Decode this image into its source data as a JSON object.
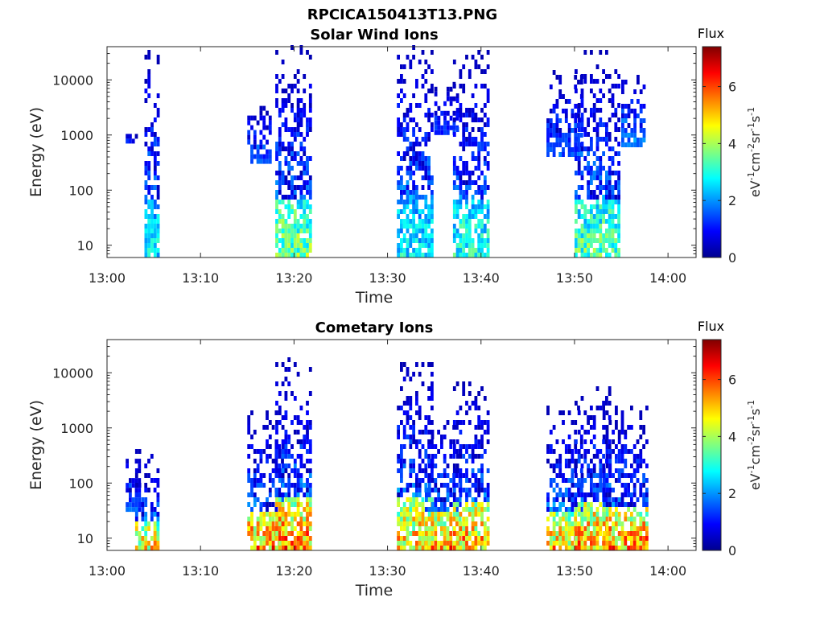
{
  "figure_title": "RPCICA150413T13.PNG",
  "chart_data": [
    {
      "type": "heatmap",
      "title": "Solar Wind Ions",
      "xlabel": "Time",
      "ylabel": "Energy (eV)",
      "x_ticks": [
        "13:00",
        "13:10",
        "13:20",
        "13:30",
        "13:40",
        "13:50",
        "14:00"
      ],
      "xlim": [
        "13:00",
        "14:03"
      ],
      "y_scale": "log",
      "y_ticks": [
        "10",
        "100",
        "1000",
        "10000"
      ],
      "ylim": [
        6,
        40000
      ],
      "colorbar": {
        "label": "Flux",
        "unit": "eV-1cm-2sr-1s-1",
        "ticks": [
          "0",
          "2",
          "4",
          "6"
        ],
        "range": [
          0,
          7.4
        ],
        "colormap": "jet"
      },
      "bursts": [
        {
          "start": "13:04",
          "end": "13:05",
          "e_low": 6,
          "e_high": 33000,
          "peak_flux": 3.5
        },
        {
          "start": "13:02",
          "end": "13:03",
          "e_low": 700,
          "e_high": 1100,
          "peak_flux": 3.0
        },
        {
          "start": "13:15",
          "end": "13:17",
          "e_low": 300,
          "e_high": 4000,
          "peak_flux": 2.0
        },
        {
          "start": "13:18",
          "end": "13:21",
          "e_low": 6,
          "e_high": 35000,
          "peak_flux": 4.8
        },
        {
          "start": "13:31",
          "end": "13:34",
          "e_low": 6,
          "e_high": 38000,
          "peak_flux": 3.5
        },
        {
          "start": "13:35",
          "end": "13:37",
          "e_low": 1000,
          "e_high": 8000,
          "peak_flux": 1.8
        },
        {
          "start": "13:37",
          "end": "13:40",
          "e_low": 6,
          "e_high": 30000,
          "peak_flux": 4.0
        },
        {
          "start": "13:47",
          "end": "13:50",
          "e_low": 400,
          "e_high": 14000,
          "peak_flux": 2.0
        },
        {
          "start": "13:50",
          "end": "13:54",
          "e_low": 6,
          "e_high": 33000,
          "peak_flux": 4.5
        },
        {
          "start": "13:55",
          "end": "13:57",
          "e_low": 600,
          "e_high": 13000,
          "peak_flux": 2.5
        }
      ]
    },
    {
      "type": "heatmap",
      "title": "Cometary Ions",
      "xlabel": "Time",
      "ylabel": "Energy (eV)",
      "x_ticks": [
        "13:00",
        "13:10",
        "13:20",
        "13:30",
        "13:40",
        "13:50",
        "14:00"
      ],
      "xlim": [
        "13:00",
        "14:03"
      ],
      "y_scale": "log",
      "y_ticks": [
        "10",
        "100",
        "1000",
        "10000"
      ],
      "ylim": [
        6,
        40000
      ],
      "colorbar": {
        "label": "Flux",
        "unit": "eV-1cm-2sr-1s-1",
        "ticks": [
          "0",
          "2",
          "4",
          "6"
        ],
        "range": [
          0,
          7.4
        ],
        "colormap": "jet"
      },
      "bursts": [
        {
          "start": "13:02",
          "end": "13:03",
          "e_low": 30,
          "e_high": 500,
          "peak_flux": 2.0
        },
        {
          "start": "13:03",
          "end": "13:05",
          "e_low": 6,
          "e_high": 400,
          "peak_flux": 6.3
        },
        {
          "start": "13:15",
          "end": "13:18",
          "e_low": 6,
          "e_high": 2000,
          "peak_flux": 7.0
        },
        {
          "start": "13:18",
          "end": "13:21",
          "e_low": 6,
          "e_high": 17000,
          "peak_flux": 7.0
        },
        {
          "start": "13:31",
          "end": "13:34",
          "e_low": 6,
          "e_high": 18000,
          "peak_flux": 6.5
        },
        {
          "start": "13:34",
          "end": "13:37",
          "e_low": 6,
          "e_high": 1500,
          "peak_flux": 7.0
        },
        {
          "start": "13:37",
          "end": "13:40",
          "e_low": 6,
          "e_high": 6500,
          "peak_flux": 6.8
        },
        {
          "start": "13:47",
          "end": "13:50",
          "e_low": 6,
          "e_high": 2500,
          "peak_flux": 6.5
        },
        {
          "start": "13:50",
          "end": "13:53",
          "e_low": 6,
          "e_high": 5500,
          "peak_flux": 6.8
        },
        {
          "start": "13:53",
          "end": "13:57",
          "e_low": 6,
          "e_high": 3000,
          "peak_flux": 7.0
        }
      ]
    }
  ]
}
